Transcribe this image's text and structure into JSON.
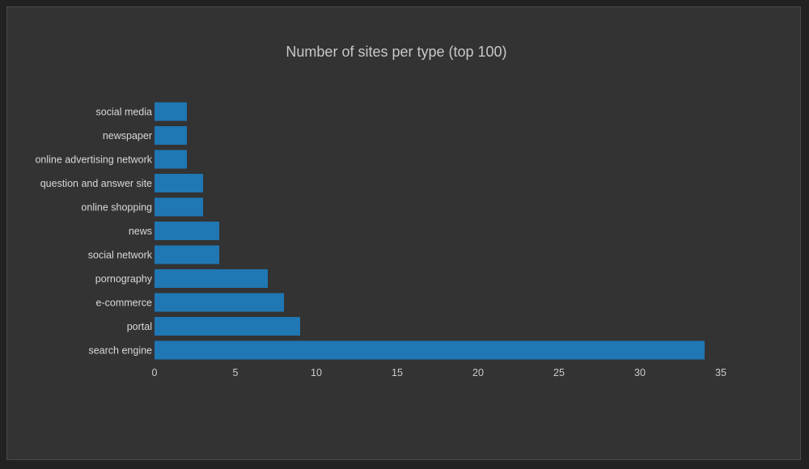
{
  "chart_data": {
    "type": "bar",
    "orientation": "horizontal",
    "title": "Number of sites per type (top 100)",
    "xlabel": "",
    "ylabel": "",
    "categories": [
      "social media",
      "newspaper",
      "online advertising network",
      "question and answer site",
      "online shopping",
      "news",
      "social network",
      "pornography",
      "e-commerce",
      "portal",
      "search engine"
    ],
    "values": [
      2,
      2,
      2,
      3,
      3,
      4,
      4,
      7,
      8,
      9,
      34
    ],
    "xlim": [
      0,
      35
    ],
    "xticks": [
      0,
      5,
      10,
      15,
      20,
      25,
      30,
      35
    ],
    "grid": false,
    "legend": "none"
  },
  "colors": {
    "background": "#333333",
    "bar": "#1f77b4"
  }
}
